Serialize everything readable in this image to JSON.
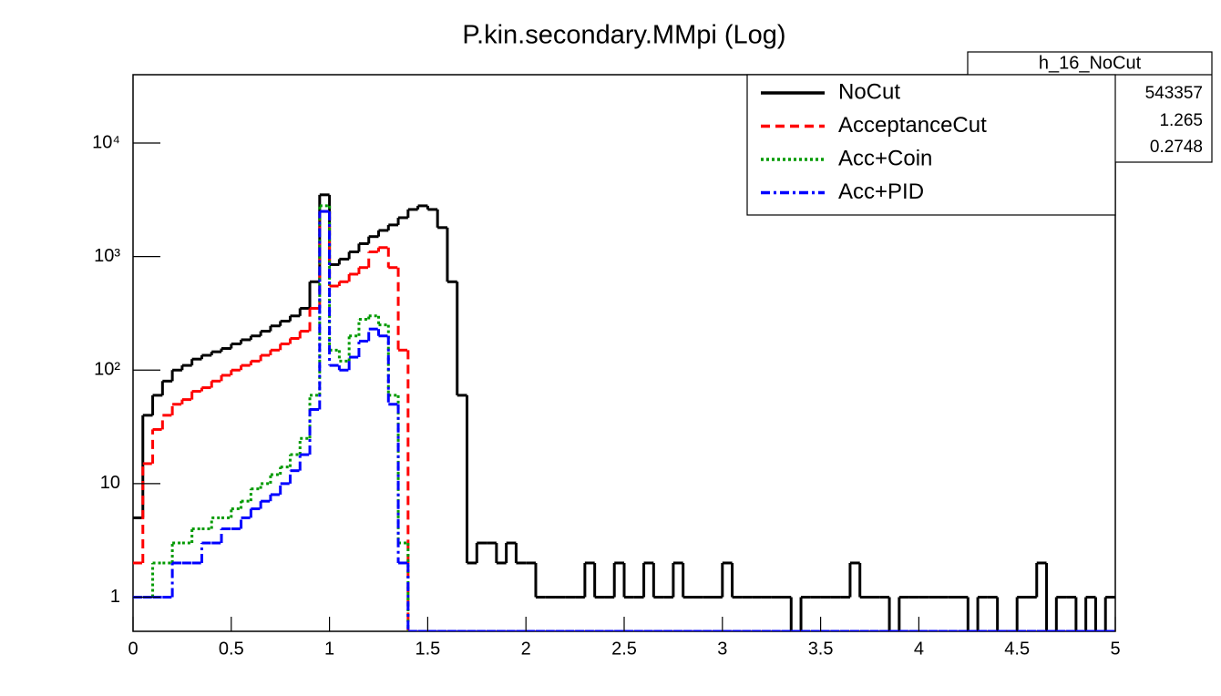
{
  "chart_data": {
    "type": "histogram",
    "title": "P.kin.secondary.MMpi (Log)",
    "bins": [
      0,
      0.05,
      0.1,
      0.15,
      0.2,
      0.25,
      0.3,
      0.35,
      0.4,
      0.45,
      0.5,
      0.55,
      0.6,
      0.65,
      0.7,
      0.75,
      0.8,
      0.85,
      0.9,
      0.95,
      1,
      1.05,
      1.1,
      1.15,
      1.2,
      1.25,
      1.3,
      1.35,
      1.4,
      1.45,
      1.5,
      1.55,
      1.6,
      1.65,
      1.7,
      1.75,
      1.8,
      1.85,
      1.9,
      1.95,
      2,
      2.05,
      2.1,
      2.15,
      2.2,
      2.25,
      2.3,
      2.35,
      2.4,
      2.45,
      2.5,
      2.55,
      2.6,
      2.65,
      2.7,
      2.75,
      2.8,
      2.85,
      2.9,
      2.95,
      3,
      3.05,
      3.1,
      3.15,
      3.2,
      3.25,
      3.3,
      3.35,
      3.4,
      3.45,
      3.5,
      3.55,
      3.6,
      3.65,
      3.7,
      3.75,
      3.8,
      3.85,
      3.9,
      3.95,
      4,
      4.05,
      4.1,
      4.15,
      4.2,
      4.25,
      4.3,
      4.35,
      4.4,
      4.45,
      4.5,
      4.55,
      4.6,
      4.65,
      4.7,
      4.75,
      4.8,
      4.85,
      4.9,
      4.95,
      5
    ],
    "series": [
      {
        "name": "NoCut",
        "color": "#000000",
        "dash": "none",
        "values": [
          5,
          40,
          60,
          80,
          100,
          110,
          125,
          135,
          145,
          155,
          170,
          185,
          200,
          220,
          245,
          270,
          300,
          350,
          600,
          3500,
          850,
          950,
          1100,
          1300,
          1500,
          1700,
          1900,
          2200,
          2600,
          2800,
          2600,
          1800,
          600,
          60,
          2,
          3,
          3,
          2,
          3,
          2,
          2,
          1,
          1,
          1,
          1,
          1,
          2,
          1,
          1,
          2,
          1,
          1,
          2,
          1,
          1,
          2,
          1,
          1,
          1,
          1,
          2,
          1,
          1,
          1,
          1,
          1,
          1,
          0,
          1,
          1,
          1,
          1,
          1,
          2,
          1,
          1,
          1,
          0,
          1,
          1,
          1,
          1,
          1,
          1,
          1,
          0,
          1,
          1,
          0,
          0,
          1,
          1,
          2,
          0,
          1,
          1,
          0,
          1,
          0,
          1
        ]
      },
      {
        "name": "AcceptanceCut",
        "color": "#ff0000",
        "dash": "10,6",
        "values": [
          2,
          15,
          30,
          40,
          50,
          55,
          65,
          70,
          80,
          90,
          100,
          110,
          120,
          135,
          150,
          170,
          190,
          220,
          350,
          2500,
          550,
          600,
          700,
          800,
          1100,
          1200,
          800,
          150,
          0,
          0,
          0,
          0,
          0,
          0,
          0,
          0,
          0,
          0,
          0,
          0,
          0,
          0,
          0,
          0,
          0,
          0,
          0,
          0,
          0,
          0,
          0,
          0,
          0,
          0,
          0,
          0,
          0,
          0,
          0,
          0,
          0,
          0,
          0,
          0,
          0,
          0,
          0,
          0,
          0,
          0,
          0,
          0,
          0,
          0,
          0,
          0,
          0,
          0,
          0,
          0,
          0,
          0,
          0,
          0,
          0,
          0,
          0,
          0,
          0,
          0,
          0,
          0,
          0,
          0,
          0,
          0,
          0,
          0,
          0,
          0
        ]
      },
      {
        "name": "Acc+Coin",
        "color": "#009a00",
        "dash": "3,3",
        "values": [
          1,
          1,
          2,
          2,
          3,
          3,
          4,
          4,
          5,
          5,
          6,
          7,
          9,
          10,
          12,
          14,
          18,
          25,
          60,
          2800,
          150,
          120,
          200,
          280,
          300,
          250,
          60,
          3,
          0,
          0,
          0,
          0,
          0,
          0,
          0,
          0,
          0,
          0,
          0,
          0,
          0,
          0,
          0,
          0,
          0,
          0,
          0,
          0,
          0,
          0,
          0,
          0,
          0,
          0,
          0,
          0,
          0,
          0,
          0,
          0,
          0,
          0,
          0,
          0,
          0,
          0,
          0,
          0,
          0,
          0,
          0,
          0,
          0,
          0,
          0,
          0,
          0,
          0,
          0,
          0,
          0,
          0,
          0,
          0,
          0,
          0,
          0,
          0,
          0,
          0,
          0,
          0,
          0,
          0,
          0,
          0,
          0,
          0,
          0,
          0
        ]
      },
      {
        "name": "Acc+PID",
        "color": "#0000ff",
        "dash": "10,4,3,4",
        "values": [
          1,
          1,
          1,
          1,
          2,
          2,
          2,
          3,
          3,
          4,
          4,
          5,
          6,
          7,
          8,
          10,
          13,
          18,
          45,
          2500,
          110,
          100,
          130,
          180,
          230,
          200,
          50,
          2,
          0,
          0,
          0,
          0,
          0,
          0,
          0,
          0,
          0,
          0,
          0,
          0,
          0,
          0,
          0,
          0,
          0,
          0,
          0,
          0,
          0,
          0,
          0,
          0,
          0,
          0,
          0,
          0,
          0,
          0,
          0,
          0,
          0,
          0,
          0,
          0,
          0,
          0,
          0,
          0,
          0,
          0,
          0,
          0,
          0,
          0,
          0,
          0,
          0,
          0,
          0,
          0,
          0,
          0,
          0,
          0,
          0,
          0,
          0,
          0,
          0,
          0,
          0,
          0,
          0,
          0,
          0,
          0,
          0,
          0,
          0,
          0
        ]
      }
    ],
    "xlim": [
      0,
      5
    ],
    "xticks": [
      0,
      0.5,
      1,
      1.5,
      2,
      2.5,
      3,
      3.5,
      4,
      4.5,
      5
    ],
    "ylim": [
      0.5,
      40000
    ],
    "log_y": true,
    "yticks": [
      1,
      10,
      {
        "value": 100,
        "label": "10²"
      },
      {
        "value": 1000,
        "label": "10³"
      },
      {
        "value": 10000,
        "label": "10⁴"
      }
    ],
    "legend": "top-right",
    "stats_box": {
      "title": "h_16_NoCut",
      "values": [
        543357,
        1.265,
        0.2748
      ]
    }
  }
}
